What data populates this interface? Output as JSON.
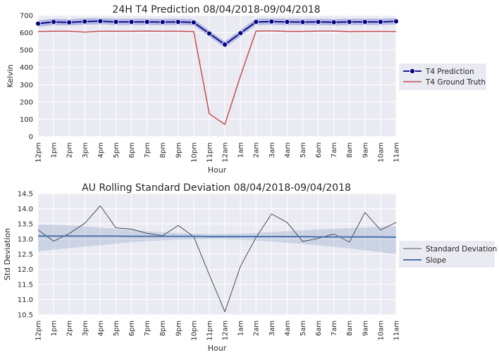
{
  "chart_data": [
    {
      "type": "line",
      "title": "24H T4 Prediction 08/04/2018-09/04/2018",
      "xlabel": "Hour",
      "ylabel": "Kelvin",
      "ylim": [
        0,
        700
      ],
      "yticks": [
        0,
        100,
        200,
        300,
        400,
        500,
        600,
        700
      ],
      "categories": [
        "12pm",
        "1pm",
        "2pm",
        "3pm",
        "4pm",
        "5pm",
        "6pm",
        "7pm",
        "8pm",
        "9pm",
        "10pm",
        "11pm",
        "12am",
        "1am",
        "2am",
        "3am",
        "4am",
        "5am",
        "6am",
        "7am",
        "8am",
        "9am",
        "10am",
        "11am"
      ],
      "grid": true,
      "legend_position": "right",
      "series": [
        {
          "name": "T4 Prediction",
          "color": "#000080",
          "band_color": "#4a56c8",
          "marker": "circle",
          "values": [
            653,
            663,
            660,
            665,
            667,
            663,
            663,
            663,
            662,
            663,
            660,
            596,
            532,
            598,
            663,
            665,
            663,
            662,
            663,
            661,
            663,
            663,
            663,
            666
          ],
          "band_width": 18
        },
        {
          "name": "T4 Ground Truth",
          "color": "#c44e52",
          "values": [
            607,
            609,
            609,
            604,
            609,
            609,
            609,
            610,
            609,
            609,
            607,
            132,
            70,
            350,
            610,
            611,
            608,
            608,
            610,
            610,
            607,
            608,
            608,
            607
          ]
        }
      ]
    },
    {
      "type": "line",
      "title": "AU Rolling Standard Deviation 08/04/2018-09/04/2018",
      "xlabel": "Hour",
      "ylabel": "Std Deviation",
      "ylim": [
        10.5,
        14.5
      ],
      "yticks": [
        10.5,
        11.0,
        11.5,
        12.0,
        12.5,
        13.0,
        13.5,
        14.0,
        14.5
      ],
      "categories": [
        "12pm",
        "1pm",
        "2pm",
        "3pm",
        "4pm",
        "5pm",
        "6pm",
        "7pm",
        "8pm",
        "9pm",
        "10pm",
        "11pm",
        "12am",
        "1am",
        "2am",
        "3am",
        "4am",
        "5am",
        "6am",
        "7am",
        "8am",
        "9am",
        "10am",
        "11am"
      ],
      "grid": true,
      "legend_position": "right",
      "series": [
        {
          "name": "Standard Deviation",
          "color": "#262626",
          "values": [
            13.3,
            12.93,
            13.18,
            13.52,
            14.1,
            13.37,
            13.33,
            13.19,
            13.11,
            13.45,
            13.08,
            11.82,
            10.6,
            12.1,
            13.05,
            13.83,
            13.55,
            12.92,
            13.02,
            13.17,
            12.9,
            13.88,
            13.3,
            13.55
          ]
        },
        {
          "name": "Slope",
          "color": "#4c72b0",
          "band_color": "#4c72b0",
          "values": [
            13.1,
            13.1,
            13.1,
            13.1,
            13.1,
            13.1,
            13.09,
            13.09,
            13.09,
            13.09,
            13.09,
            13.08,
            13.08,
            13.08,
            13.08,
            13.08,
            13.08,
            13.08,
            13.07,
            13.07,
            13.07,
            13.07,
            13.07,
            13.06
          ],
          "band_lower": [
            12.6,
            12.65,
            12.7,
            12.75,
            12.8,
            12.85,
            12.9,
            12.93,
            12.96,
            12.97,
            12.98,
            12.99,
            12.99,
            12.97,
            12.95,
            12.92,
            12.88,
            12.84,
            12.79,
            12.74,
            12.69,
            12.63,
            12.57,
            12.5
          ],
          "band_upper": [
            13.48,
            13.47,
            13.45,
            13.42,
            13.38,
            13.34,
            13.3,
            13.26,
            13.22,
            13.2,
            13.18,
            13.17,
            13.17,
            13.18,
            13.2,
            13.23,
            13.26,
            13.29,
            13.32,
            13.34,
            13.36,
            13.38,
            13.4,
            13.42
          ]
        }
      ]
    }
  ]
}
